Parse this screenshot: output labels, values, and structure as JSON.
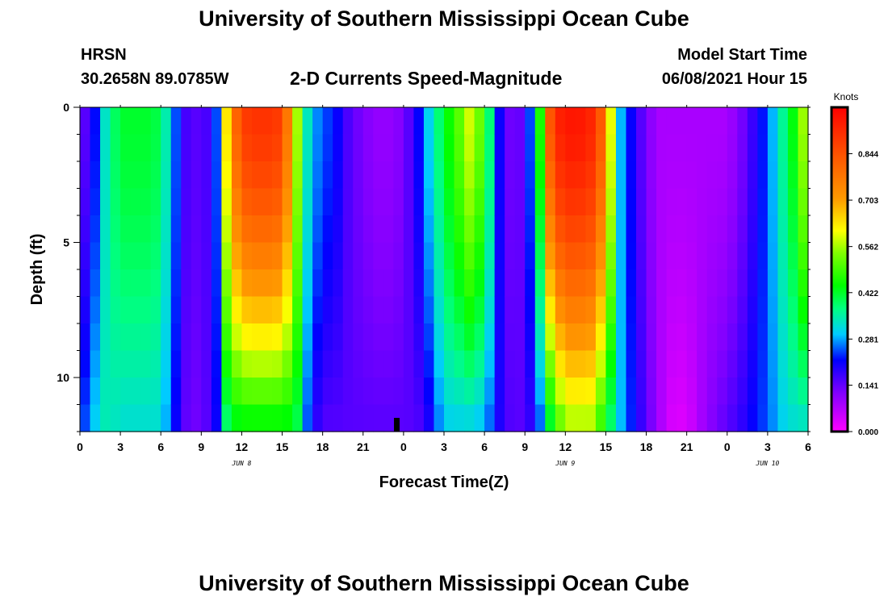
{
  "header": {
    "title_top": "University of Southern Mississippi Ocean Cube",
    "title_bottom": "University of Southern Mississippi Ocean Cube",
    "station": "HRSN",
    "coords": "30.2658N  89.0785W",
    "subtitle": "2-D Currents Speed-Magnitude",
    "model_label": "Model Start Time",
    "model_time": "06/08/2021 Hour 15"
  },
  "chart_data": {
    "type": "heatmap",
    "title": "2-D Currents Speed-Magnitude",
    "xlabel": "Forecast Time(Z)",
    "ylabel": "Depth (ft)",
    "units": "Knots",
    "x_hours_range": [
      0,
      54
    ],
    "y_depth_range": [
      0,
      12
    ],
    "x_ticks": [
      "0",
      "3",
      "6",
      "9",
      "12",
      "15",
      "18",
      "21",
      "0",
      "3",
      "6",
      "9",
      "12",
      "15",
      "18",
      "21",
      "0",
      "3",
      "6"
    ],
    "y_ticks": [
      "0",
      "5",
      "10"
    ],
    "y_tick_values": [
      0,
      5,
      10
    ],
    "day_labels": [
      {
        "label": "JUN 8",
        "hour": 12
      },
      {
        "label": "JUN 9",
        "hour": 36
      },
      {
        "label": "JUN 10",
        "hour": 51
      }
    ],
    "colorbar": {
      "labels": [
        "0.844",
        "0.703",
        "0.562",
        "0.422",
        "0.281",
        "0.141",
        "0.000"
      ],
      "values": [
        0.844,
        0.703,
        0.562,
        0.422,
        0.281,
        0.141,
        0.0
      ],
      "min": 0.0,
      "max": 0.985
    },
    "current_time_marker_hour": 23.5,
    "speed_profiles": {
      "hours": [
        0,
        1,
        2,
        3,
        4,
        5,
        6,
        7,
        8,
        9,
        10,
        11,
        12,
        13,
        14,
        15,
        16,
        17,
        18,
        19,
        20,
        21,
        22,
        23,
        24,
        25,
        26,
        27,
        28,
        29,
        30,
        31,
        32,
        33,
        34,
        35,
        36,
        37,
        38,
        39,
        40,
        41,
        42,
        43,
        44,
        45,
        46,
        47,
        48,
        49,
        50,
        51,
        52,
        53,
        54
      ],
      "surface": [
        0.12,
        0.2,
        0.35,
        0.42,
        0.42,
        0.42,
        0.4,
        0.26,
        0.15,
        0.15,
        0.18,
        0.7,
        0.88,
        0.9,
        0.9,
        0.88,
        0.6,
        0.3,
        0.25,
        0.22,
        0.15,
        0.12,
        0.1,
        0.1,
        0.12,
        0.2,
        0.32,
        0.42,
        0.5,
        0.6,
        0.48,
        0.22,
        0.12,
        0.15,
        0.4,
        0.9,
        0.95,
        0.95,
        0.92,
        0.78,
        0.3,
        0.2,
        0.12,
        0.08,
        0.08,
        0.08,
        0.08,
        0.08,
        0.08,
        0.12,
        0.18,
        0.25,
        0.35,
        0.45,
        0.62
      ],
      "bottom": [
        0.22,
        0.3,
        0.35,
        0.32,
        0.32,
        0.32,
        0.32,
        0.22,
        0.13,
        0.13,
        0.18,
        0.4,
        0.42,
        0.42,
        0.42,
        0.42,
        0.42,
        0.22,
        0.15,
        0.15,
        0.15,
        0.15,
        0.15,
        0.15,
        0.15,
        0.15,
        0.2,
        0.3,
        0.3,
        0.3,
        0.28,
        0.2,
        0.15,
        0.15,
        0.22,
        0.42,
        0.55,
        0.55,
        0.55,
        0.42,
        0.3,
        0.22,
        0.15,
        0.08,
        0.03,
        0.03,
        0.08,
        0.12,
        0.15,
        0.18,
        0.22,
        0.25,
        0.3,
        0.32,
        0.32
      ]
    }
  }
}
